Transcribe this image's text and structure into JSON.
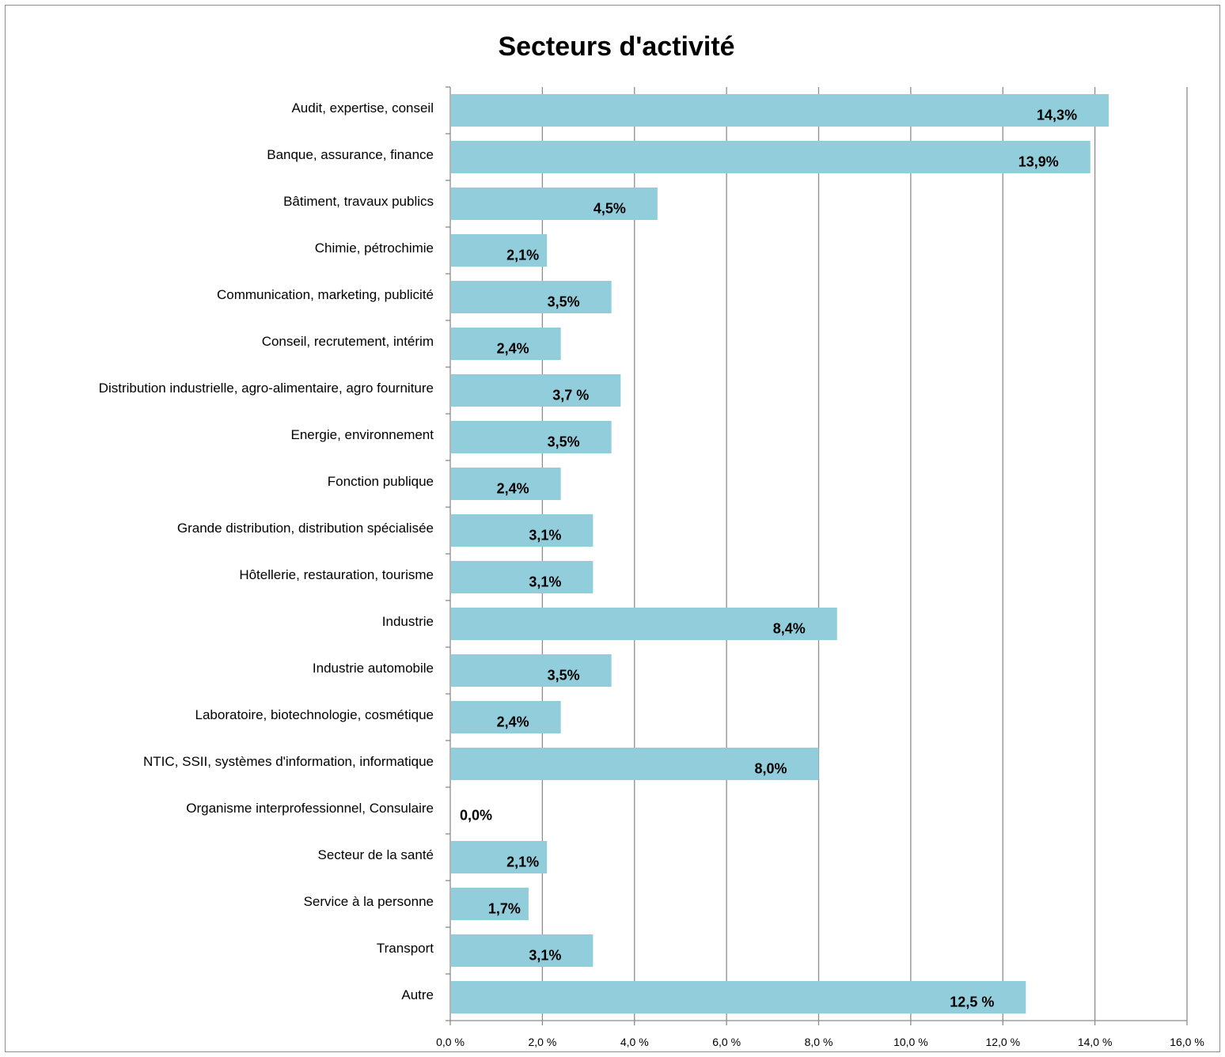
{
  "chart_data": {
    "type": "bar",
    "orientation": "horizontal",
    "title": "Secteurs d'activité",
    "categories": [
      "Audit, expertise, conseil",
      "Banque, assurance, finance",
      "Bâtiment, travaux publics",
      "Chimie, pétrochimie",
      "Communication, marketing, publicité",
      "Conseil, recrutement, intérim",
      "Distribution industrielle, agro-alimentaire, agro fourniture",
      "Energie, environnement",
      "Fonction publique",
      "Grande distribution, distribution spécialisée",
      "Hôtellerie, restauration, tourisme",
      "Industrie",
      "Industrie automobile",
      "Laboratoire, biotechnologie, cosmétique",
      "NTIC, SSII, systèmes d'information, informatique",
      "Organisme interprofessionnel, Consulaire",
      "Secteur de la santé",
      "Service à la personne",
      "Transport",
      "Autre"
    ],
    "values": [
      14.3,
      13.9,
      4.5,
      2.1,
      3.5,
      2.4,
      3.7,
      3.5,
      2.4,
      3.1,
      3.1,
      8.4,
      3.5,
      2.4,
      8.0,
      0.0,
      2.1,
      1.7,
      3.1,
      12.5
    ],
    "data_labels": [
      "14,3%",
      "13,9%",
      "4,5%",
      "2,1%",
      "3,5%",
      "2,4%",
      "3,7 %",
      "3,5%",
      "2,4%",
      "3,1%",
      "3,1%",
      "8,4%",
      "3,5%",
      "2,4%",
      "8,0%",
      "0,0%",
      "2,1%",
      "1,7%",
      "3,1%",
      "12,5 %"
    ],
    "x_ticks": [
      "0,0 %",
      "2,0 %",
      "4,0 %",
      "6,0 %",
      "8,0 %",
      "10,0 %",
      "12,0 %",
      "14,0 %",
      "16,0 %"
    ],
    "xlim": [
      0,
      16
    ],
    "xlabel": "",
    "ylabel": "",
    "grid": "vertical",
    "legend": "none",
    "colors": {
      "bar": "#92cddc",
      "grid": "#8c8c8c",
      "axis": "#8c8c8c"
    }
  }
}
